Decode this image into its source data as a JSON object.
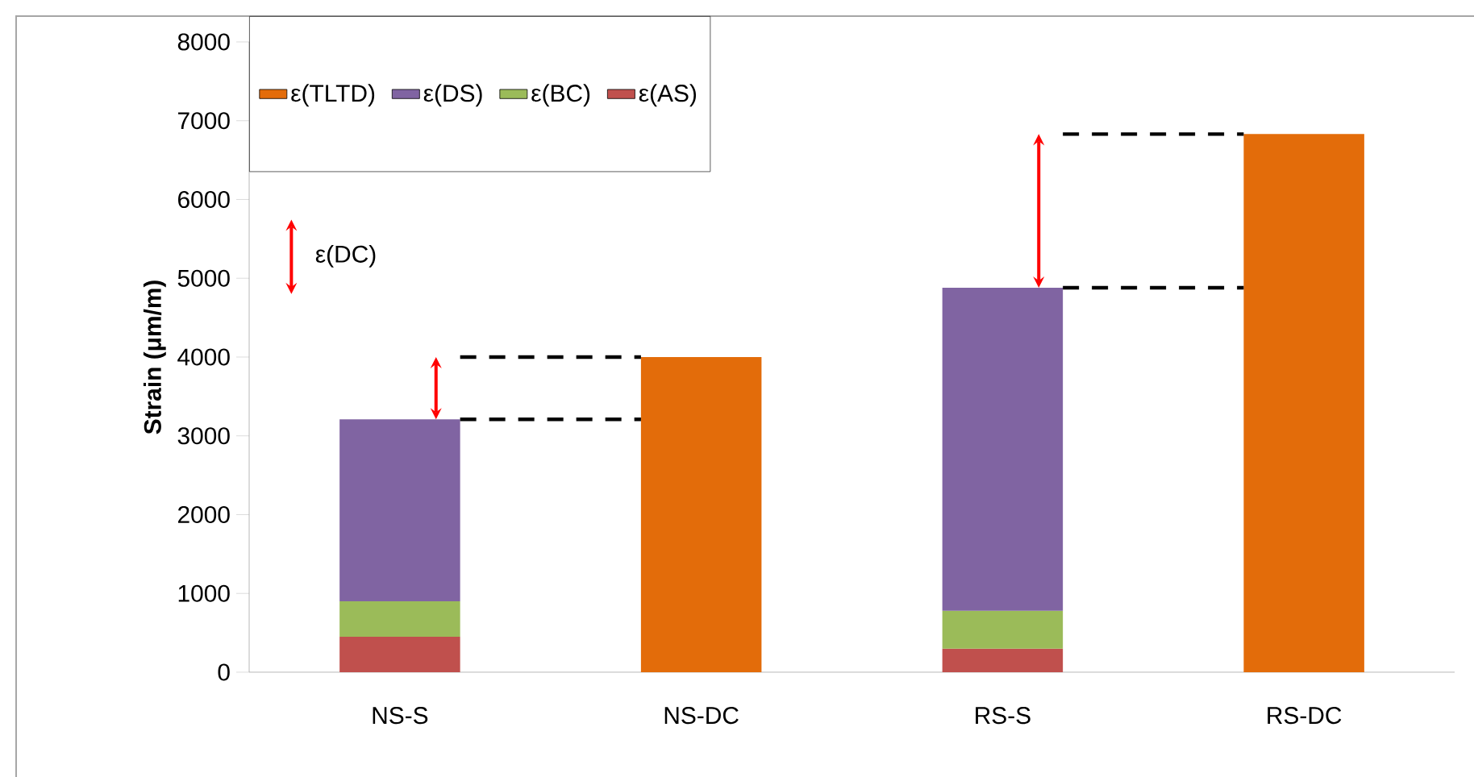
{
  "chart_data": {
    "type": "bar",
    "stacked": true,
    "ylabel": "Strain (μm/m)",
    "categories": [
      "NS-S",
      "NS-DC",
      "RS-S",
      "RS-DC"
    ],
    "series": [
      {
        "name": "ε(AS)",
        "color": "#c0504d",
        "values": [
          450,
          null,
          300,
          null
        ]
      },
      {
        "name": "ε(BC)",
        "color": "#9bbb59",
        "values": [
          450,
          null,
          480,
          null
        ]
      },
      {
        "name": "ε(DS)",
        "color": "#8064a2",
        "values": [
          2310,
          null,
          4100,
          null
        ]
      },
      {
        "name": "ε(TLTD)",
        "color": "#e36c0a",
        "values": [
          null,
          4000,
          null,
          6830
        ]
      }
    ],
    "ylim": [
      0,
      8000
    ],
    "yticks": [
      0,
      1000,
      2000,
      3000,
      4000,
      5000,
      6000,
      7000,
      8000
    ],
    "legend": "top left",
    "grid": false,
    "annotations": [
      "ε(DC)"
    ]
  }
}
